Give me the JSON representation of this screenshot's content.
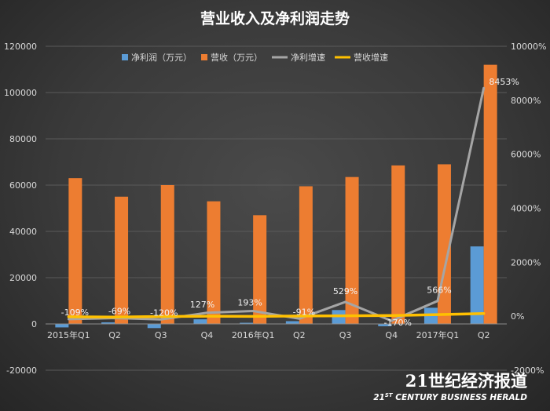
{
  "chart_data": {
    "type": "bar",
    "title": "营业收入及净利润走势",
    "categories": [
      "2015年Q1",
      "Q2",
      "Q3",
      "Q4",
      "2016年Q1",
      "Q2",
      "Q3",
      "Q4",
      "2017年Q1",
      "Q2"
    ],
    "left_axis": {
      "min": -20000,
      "max": 120000,
      "step": 20000,
      "ticks": [
        "-20000",
        "0",
        "20000",
        "40000",
        "60000",
        "80000",
        "100000",
        "120000"
      ]
    },
    "right_axis": {
      "min": -2000,
      "max": 10000,
      "step": 2000,
      "ticks": [
        "-2000%",
        "0%",
        "2000%",
        "4000%",
        "6000%",
        "8000%",
        "10000%"
      ]
    },
    "series": [
      {
        "name": "净利润（万元）",
        "kind": "bar",
        "axis": "left",
        "color": "#5b9bd5",
        "values": [
          -1500,
          700,
          -1800,
          2000,
          500,
          1200,
          6000,
          -1000,
          7000,
          33500
        ]
      },
      {
        "name": "营收（万元）",
        "kind": "bar",
        "axis": "left",
        "color": "#ed7d31",
        "values": [
          63000,
          55000,
          60000,
          53000,
          47000,
          59500,
          63500,
          68500,
          69000,
          112000
        ]
      },
      {
        "name": "净利增速",
        "kind": "line",
        "axis": "right",
        "color": "#a5a5a5",
        "values": [
          -109,
          -69,
          -120,
          127,
          193,
          -91,
          529,
          -170,
          566,
          8453
        ]
      },
      {
        "name": "营收增速",
        "kind": "line",
        "axis": "right",
        "color": "#ffc000",
        "values": [
          -20,
          -30,
          -10,
          0,
          -5,
          10,
          15,
          25,
          60,
          100
        ]
      }
    ],
    "data_labels": [
      "-109%",
      "-69%",
      "-120%",
      "127%",
      "193%",
      "-91%",
      "529%",
      "-170%",
      "566%",
      "8453%"
    ]
  },
  "watermark": {
    "chinese": "21世纪经济报道",
    "english": "21ST CENTURY BUSINESS HERALD"
  }
}
